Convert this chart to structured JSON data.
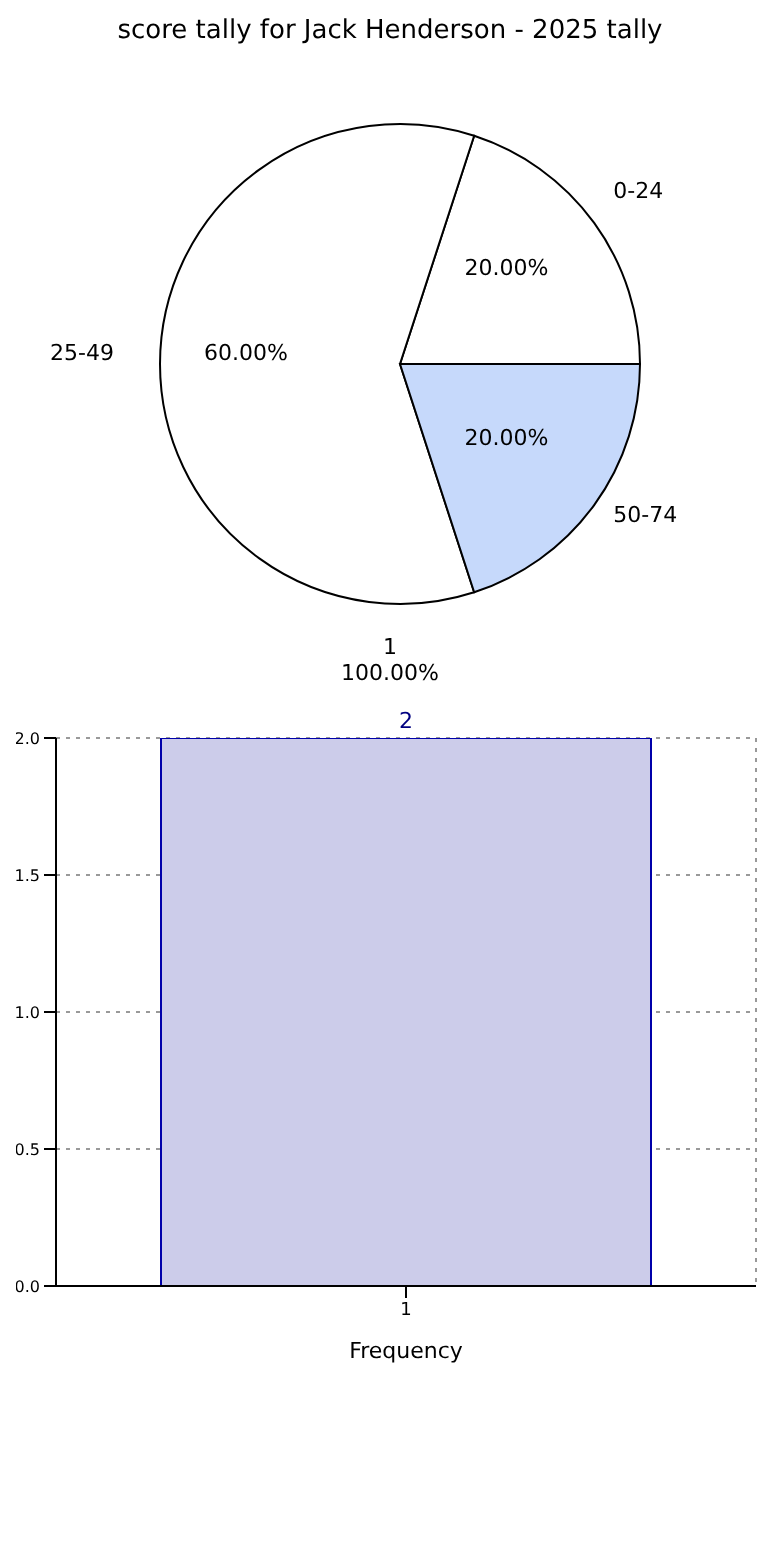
{
  "chart_data": [
    {
      "type": "pie",
      "title": "score tally for Jack Henderson - 2025 tally",
      "categories": [
        "0-24",
        "25-49",
        "50-74"
      ],
      "values": [
        20,
        60,
        20
      ],
      "colors": [
        "#ffffff",
        "#ffffff",
        "#c6d9fb"
      ],
      "value_labels": [
        "20.00%",
        "60.00%",
        "20.00%"
      ],
      "annotations": [
        "1",
        "100.00%"
      ],
      "legend": false
    },
    {
      "type": "bar",
      "categories": [
        "1"
      ],
      "values": [
        2
      ],
      "color": "#ccccea",
      "xlabel": "Frequency",
      "ylim": [
        0,
        2
      ],
      "yticks": [
        {
          "value": 0,
          "label": "0.0"
        },
        {
          "value": 0.5,
          "label": "0.5"
        },
        {
          "value": 1,
          "label": "1.0"
        },
        {
          "value": 1.5,
          "label": "1.5"
        },
        {
          "value": 2,
          "label": "2.0"
        }
      ],
      "grid": true,
      "data_labels": true,
      "legend": false
    }
  ]
}
